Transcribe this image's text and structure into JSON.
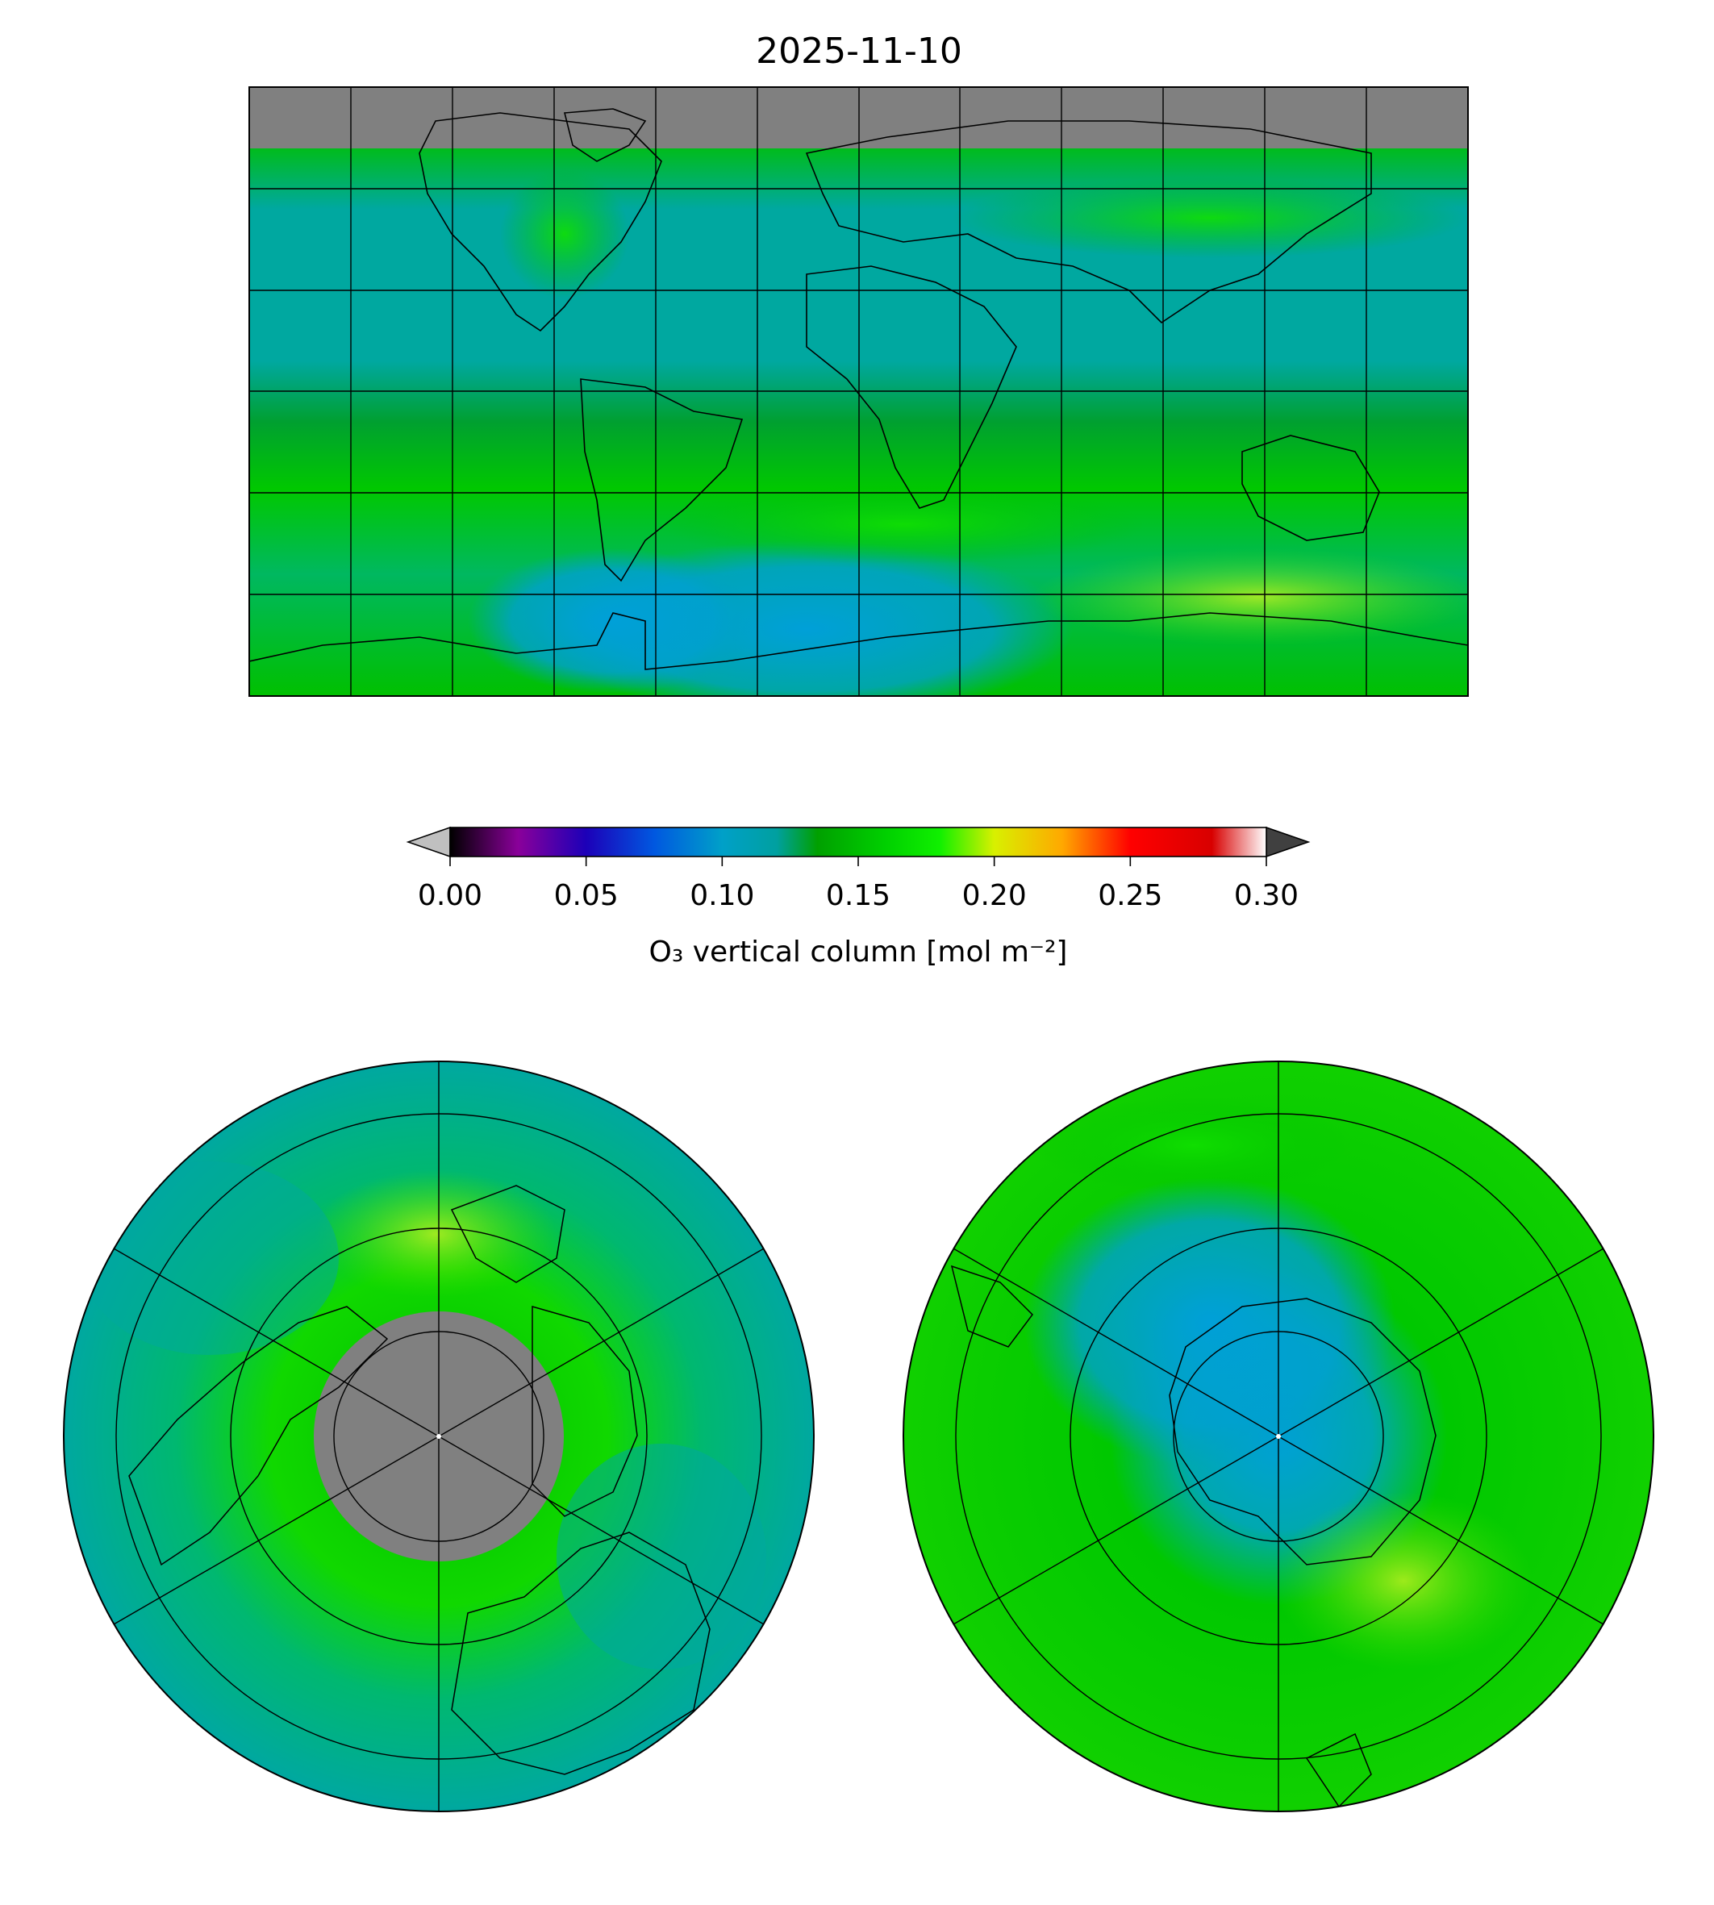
{
  "figure": {
    "title": "2025-11-10"
  },
  "colorbar": {
    "label": "O₃ vertical column [mol m⁻²]",
    "ticks": [
      "0.00",
      "0.05",
      "0.10",
      "0.15",
      "0.20",
      "0.25",
      "0.30"
    ],
    "tick_values": [
      0.0,
      0.05,
      0.1,
      0.15,
      0.2,
      0.25,
      0.3
    ],
    "range": [
      0.0,
      0.3
    ],
    "extend": "both",
    "under_color": "#c0c0c0",
    "over_color": "#404040",
    "stops": [
      {
        "v": 0.0,
        "c": "#000000"
      },
      {
        "v": 0.025,
        "c": "#8a009a"
      },
      {
        "v": 0.05,
        "c": "#1c00b8"
      },
      {
        "v": 0.075,
        "c": "#0058e0"
      },
      {
        "v": 0.1,
        "c": "#00a0c8"
      },
      {
        "v": 0.12,
        "c": "#00a0a0"
      },
      {
        "v": 0.135,
        "c": "#00a000"
      },
      {
        "v": 0.16,
        "c": "#00d000"
      },
      {
        "v": 0.18,
        "c": "#10f000"
      },
      {
        "v": 0.2,
        "c": "#d8f000"
      },
      {
        "v": 0.225,
        "c": "#ffa800"
      },
      {
        "v": 0.25,
        "c": "#ff0000"
      },
      {
        "v": 0.28,
        "c": "#d80000"
      },
      {
        "v": 0.3,
        "c": "#ffffff"
      }
    ]
  },
  "colors": {
    "missing_data": "#808080",
    "low_ozone": "#00a0d8",
    "mid_ozone": "#00a8a0",
    "high_ozone": "#00e000"
  },
  "maps": [
    {
      "name": "global-map",
      "projection": "plate-carree",
      "grid": true,
      "grid_spacing_deg": [
        30,
        30
      ]
    },
    {
      "name": "north-polar-map",
      "projection": "north-polar-stereographic",
      "grid": true
    },
    {
      "name": "south-polar-map",
      "projection": "south-polar-stereographic",
      "grid": true
    }
  ]
}
